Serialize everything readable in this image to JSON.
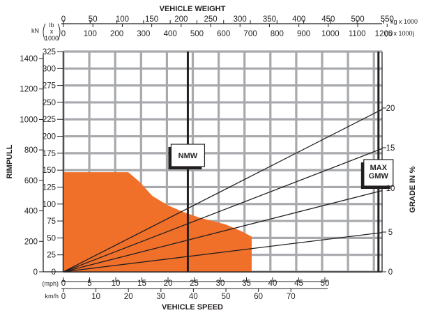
{
  "chart_data": {
    "type": "line",
    "title": "VEHICLE WEIGHT",
    "xlabel": "VEHICLE SPEED",
    "ylabel": "RIMPULL",
    "y2label": "GRADE IN %",
    "x_unit_mph": "(mph)",
    "x_unit_kmh": "km/h",
    "xlim_mph": [
      0,
      61
    ],
    "ylim_klb": [
      0,
      325
    ],
    "weight_kg_ticks": [
      "0",
      "50",
      "100",
      "150",
      "200",
      "250",
      "300",
      "350",
      "400",
      "450",
      "500",
      "550"
    ],
    "weight_kg_unit": "kg x 1000",
    "weight_lb_ticks": [
      "0",
      "100",
      "200",
      "300",
      "400",
      "500",
      "600",
      "700",
      "800",
      "900",
      "1000",
      "1100",
      "1200"
    ],
    "weight_lb_unit": "(lb  x 1000)",
    "kn_unit": "kN",
    "lb_unit_parts": [
      "lb",
      "x",
      "1000"
    ],
    "mph_ticks": [
      "0",
      "5",
      "10",
      "15",
      "20",
      "25",
      "30",
      "35",
      "40",
      "45",
      "50"
    ],
    "kmh_ticks": [
      "0",
      "10",
      "20",
      "30",
      "40",
      "50",
      "60",
      "70"
    ],
    "klb_ticks": [
      "0",
      "25",
      "50",
      "75",
      "100",
      "125",
      "150",
      "175",
      "200",
      "225",
      "250",
      "275",
      "300",
      "325"
    ],
    "kn_ticks": [
      "0",
      "200",
      "400",
      "600",
      "800",
      "1000",
      "1200",
      "1400"
    ],
    "grade_ticks": [
      "0",
      "5",
      "10",
      "15",
      "20"
    ],
    "rimpull_curve": {
      "speed_mph": [
        0,
        12.4,
        14.5,
        17.0,
        20.0,
        23.0,
        26.0,
        28.0,
        31.0,
        34.0,
        36.0,
        36.0
      ],
      "rimpull_klb": [
        147,
        147,
        133,
        112,
        98,
        88,
        80,
        76,
        70,
        60,
        52,
        0
      ]
    },
    "grade_lines": [
      {
        "grade": "5",
        "end_speed_mph": 61,
        "end_rimpull_klb": 58
      },
      {
        "grade": "10",
        "end_speed_mph": 61,
        "end_rimpull_klb": 120
      },
      {
        "grade": "15",
        "end_speed_mph": 61,
        "end_rimpull_klb": 182
      },
      {
        "grade": "20",
        "end_speed_mph": 61,
        "end_rimpull_klb": 240
      }
    ],
    "markers": [
      {
        "label": "NMW",
        "weight_lb_x1000": 466
      },
      {
        "label_lines": [
          "MAX",
          "GMW"
        ],
        "weight_lb_x1000": 1180
      }
    ],
    "grid": true,
    "colors": {
      "fill": "#f0702a",
      "grid": "#a7a9ac",
      "ink": "#231f20"
    }
  }
}
